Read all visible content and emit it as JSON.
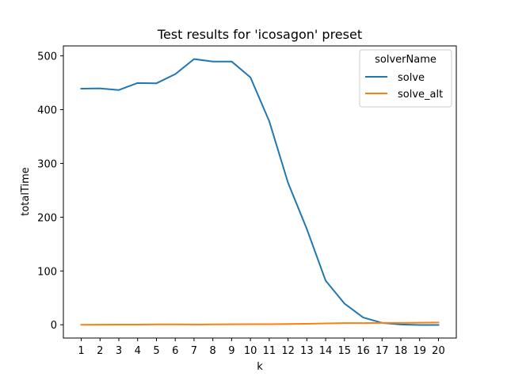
{
  "chart_data": {
    "type": "line",
    "title": "Test results for 'icosagon' preset",
    "xlabel": "k",
    "ylabel": "totalTime",
    "x": [
      1,
      2,
      3,
      4,
      5,
      6,
      7,
      8,
      9,
      10,
      11,
      12,
      13,
      14,
      15,
      16,
      17,
      18,
      19,
      20
    ],
    "xlim": [
      0.05,
      20.95
    ],
    "ylim": [
      -24.7,
      518.5
    ],
    "yticks": [
      0,
      100,
      200,
      300,
      400,
      500
    ],
    "grid": false,
    "legend": {
      "title": "solverName",
      "placement": "top-right"
    },
    "series": [
      {
        "name": "solve",
        "color": "#1f77b4",
        "values": [
          439,
          439.5,
          436.5,
          449.5,
          449,
          466,
          494,
          489.5,
          489.5,
          460,
          378.5,
          264,
          178,
          82,
          39.5,
          13.5,
          3.5,
          0.5,
          -0.5,
          -0.5
        ]
      },
      {
        "name": "solve_alt",
        "color": "#ff7f0e",
        "values": [
          0,
          0.2,
          0.3,
          0.3,
          0.6,
          0.6,
          0.5,
          0.6,
          0.8,
          1,
          1,
          1.5,
          1.8,
          2.5,
          3,
          3,
          3.5,
          3.5,
          3.8,
          4.2
        ]
      }
    ]
  }
}
